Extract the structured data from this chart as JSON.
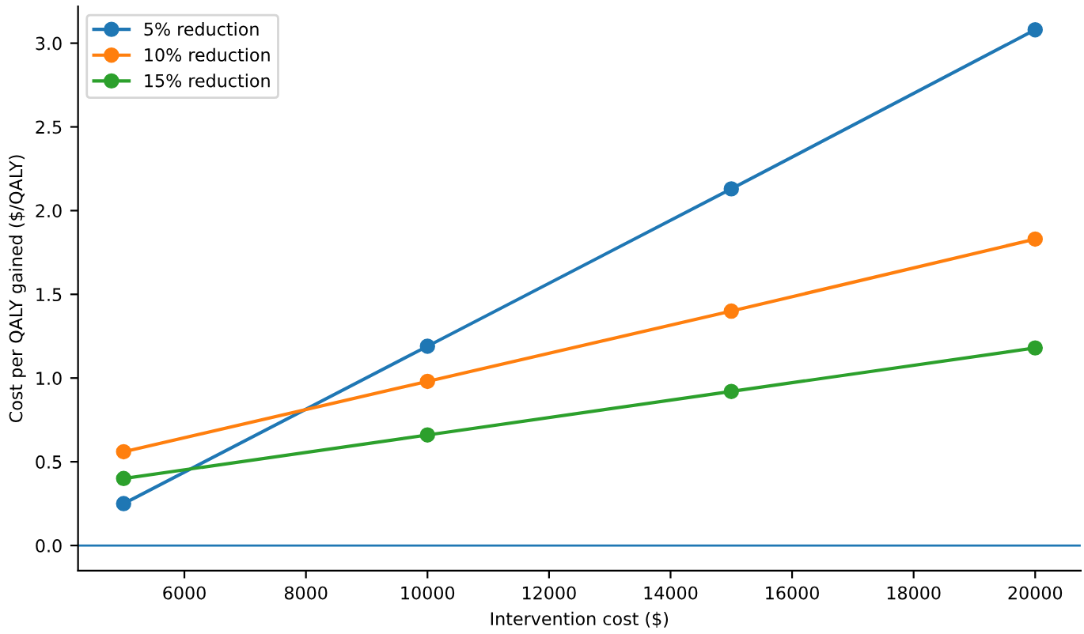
{
  "chart_data": {
    "type": "line",
    "xlabel": "Intervention cost ($)",
    "ylabel": "Cost per QALY gained ($/QALY)",
    "x": [
      5000,
      10000,
      15000,
      20000
    ],
    "series": [
      {
        "name": "5% reduction",
        "color": "#1f77b4",
        "values": [
          0.25,
          1.19,
          2.13,
          3.08
        ]
      },
      {
        "name": "10% reduction",
        "color": "#ff7f0e",
        "values": [
          0.56,
          0.98,
          1.4,
          1.83
        ]
      },
      {
        "name": "15% reduction",
        "color": "#2ca02c",
        "values": [
          0.4,
          0.66,
          0.92,
          1.18
        ]
      }
    ],
    "xlim": [
      4250,
      20750
    ],
    "xticks": [
      6000,
      8000,
      10000,
      12000,
      14000,
      16000,
      18000,
      20000
    ],
    "ylim": [
      -0.15,
      3.22
    ],
    "yticks": [
      {
        "value": 0,
        "label": "0.0"
      },
      0.5,
      {
        "value": 1,
        "label": "1.0"
      },
      1.5,
      {
        "value": 2,
        "label": "2.0"
      },
      2.5,
      {
        "value": 3,
        "label": "3.0"
      }
    ],
    "ref_lines": [
      {
        "axis": "y",
        "value": 0,
        "label": null,
        "color": "#1f77b4"
      }
    ],
    "legend": "top left",
    "marker": "circle",
    "line_style": "solid",
    "grid": false
  }
}
